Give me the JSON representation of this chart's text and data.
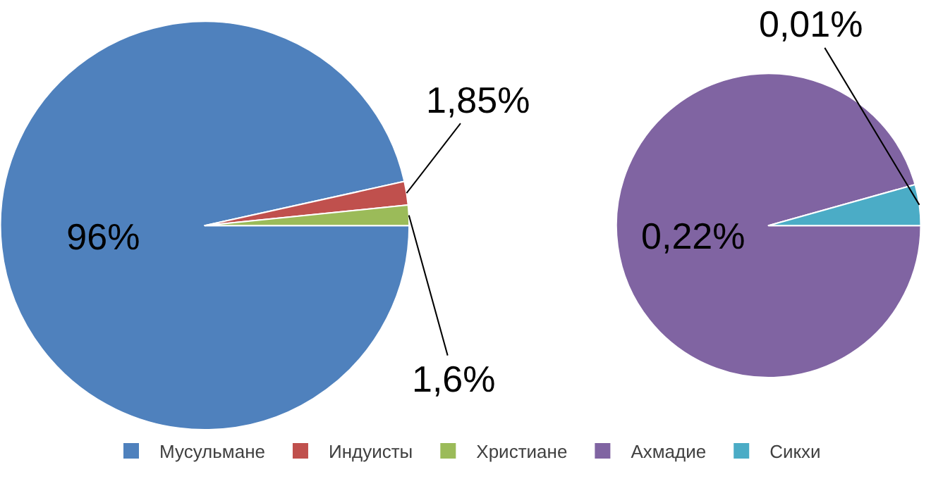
{
  "chart_data": [
    {
      "type": "pie",
      "categories": [
        "Мусульмане",
        "Индуисты",
        "Христиане"
      ],
      "values": [
        96,
        1.85,
        1.6
      ],
      "colors": [
        "#4f81bd",
        "#c0504d",
        "#9bbb59"
      ],
      "value_labels": [
        "96%",
        "1,85%",
        "1,6%"
      ],
      "legend": "bottom"
    },
    {
      "type": "pie",
      "categories": [
        "Ахмадие",
        "Сикхи"
      ],
      "values": [
        0.22,
        0.01
      ],
      "colors": [
        "#8064a2",
        "#4bacc6"
      ],
      "value_labels": [
        "0,22%",
        "0,01%"
      ],
      "legend": "bottom"
    }
  ]
}
